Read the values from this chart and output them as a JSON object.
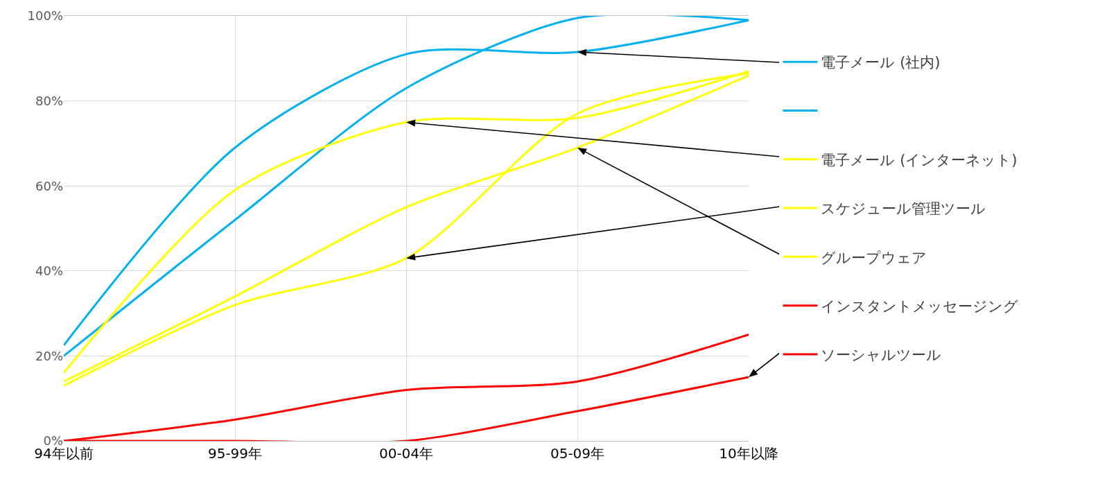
{
  "chart_data": {
    "type": "line",
    "categories": [
      "94年以前",
      "95-99年",
      "00-04年",
      "05-09年",
      "10年以降"
    ],
    "ylim": [
      0,
      100
    ],
    "yticks": [
      {
        "value": 0,
        "label": "0%"
      },
      {
        "value": 20,
        "label": "20%"
      },
      {
        "value": 40,
        "label": "40%"
      },
      {
        "value": 60,
        "label": "60%"
      },
      {
        "value": 80,
        "label": "80%"
      },
      {
        "value": 100,
        "label": "100%"
      }
    ],
    "grid": true,
    "legend": "right",
    "marker": "none",
    "line_style": "solid",
    "series": [
      {
        "name": "電子メール (社内)",
        "color": "#00b0f0",
        "values": [
          22.5,
          69,
          91,
          91.5,
          99
        ]
      },
      {
        "color": "#00b0f0",
        "values": [
          20,
          52,
          83,
          99.5,
          99
        ]
      },
      {
        "name": "電子メール (インターネット)",
        "color": "#ffff00",
        "values": [
          16,
          59,
          75,
          76,
          87
        ]
      },
      {
        "name": "スケジュール管理ツール",
        "color": "#ffff00",
        "values": [
          13,
          32,
          43,
          77,
          86.5
        ]
      },
      {
        "name": "グループウェア",
        "color": "#ffff00",
        "values": [
          14,
          34,
          55,
          69,
          86
        ]
      },
      {
        "name": "インスタントメッセージング",
        "color": "#ff0000",
        "values": [
          0,
          5,
          12,
          14,
          25
        ]
      },
      {
        "name": "ソーシャルツール",
        "color": "#ff0000",
        "values": [
          0,
          0,
          0,
          7,
          15
        ]
      }
    ]
  }
}
